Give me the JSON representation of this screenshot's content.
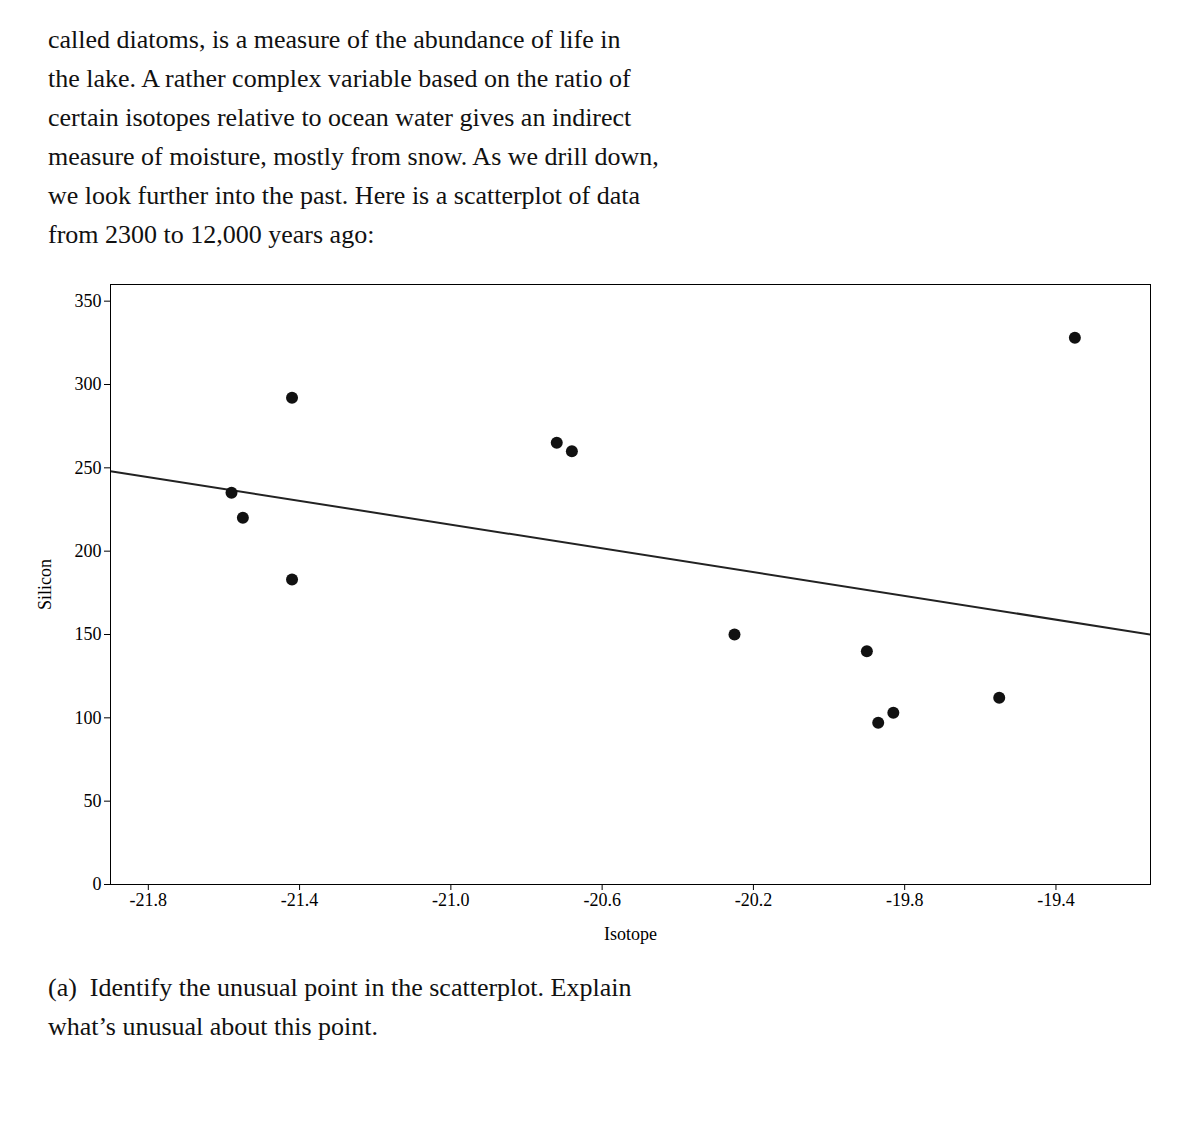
{
  "chart_data": {
    "type": "scatter",
    "x": [
      -21.58,
      -21.55,
      -21.42,
      -21.42,
      -20.72,
      -20.68,
      -20.25,
      -19.9,
      -19.87,
      -19.83,
      -19.55,
      -19.35
    ],
    "values": [
      235,
      220,
      292,
      183,
      265,
      260,
      150,
      140,
      97,
      103,
      112,
      328
    ],
    "color": "#111111",
    "marker": "circle",
    "regression": {
      "x": [
        -21.9,
        -19.15
      ],
      "values": [
        248,
        150
      ],
      "color": "#222222",
      "line_style": "solid"
    },
    "xlabel": "Isotope",
    "ylabel": "Silicon",
    "xlim": [
      -21.9,
      -19.15
    ],
    "ylim": [
      0,
      360
    ],
    "xticks": [
      -21.8,
      -21.4,
      {
        "value": -21,
        "label": "-21.0"
      },
      -20.6,
      -20.2,
      -19.8,
      -19.4
    ],
    "yticks": [
      0,
      50,
      100,
      150,
      200,
      250,
      300,
      350
    ],
    "annotations": [
      "called diatoms, is a measure of the abundance of life in\nthe lake. A rather complex variable based on the ratio of\ncertain isotopes relative to ocean water gives an indirect\nmeasure of moisture, mostly from snow. As we drill down,\nwe look further into the past. Here is a scatterplot of data\nfrom 2300 to 12,000 years ago:",
      "(a)  Identify the unusual point in the scatterplot. Explain\nwhat’s unusual about this point."
    ]
  }
}
